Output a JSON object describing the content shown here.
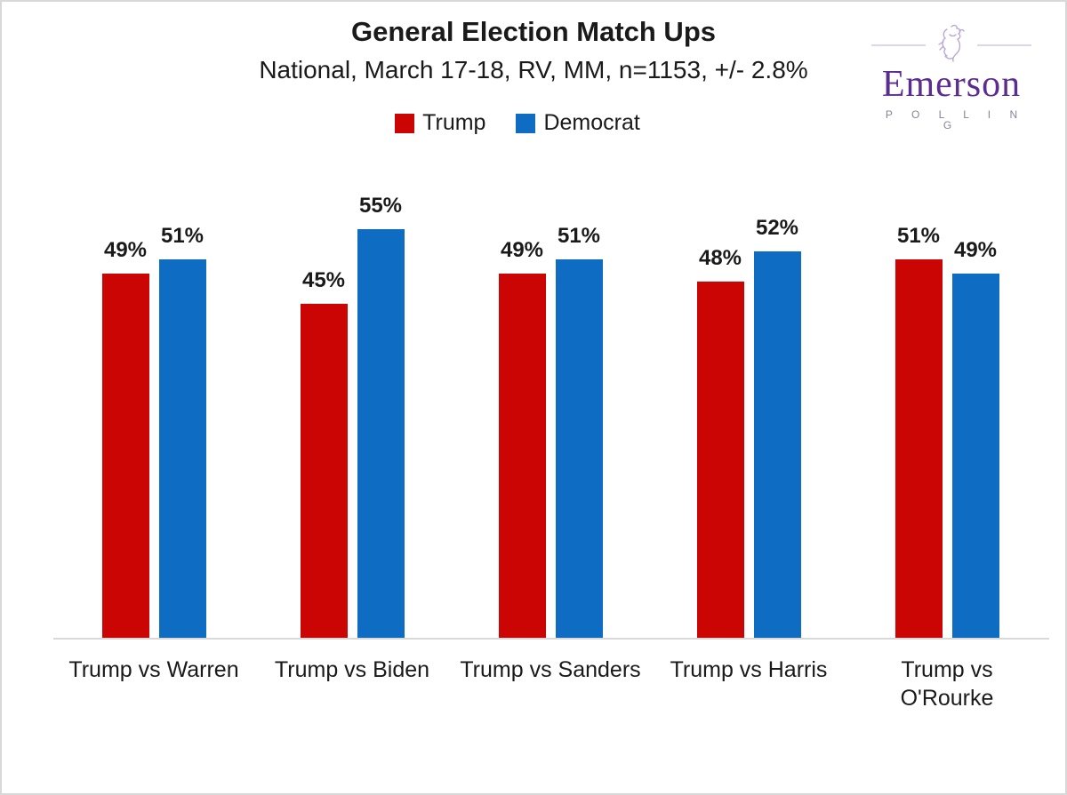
{
  "page": {
    "background_color": "#FFFFFF",
    "border_color": "#D8D8D8"
  },
  "header": {
    "title": "General Election Match Ups",
    "subtitle": "National, March 17-18, RV, MM, n=1153, +/- 2.8%"
  },
  "logo": {
    "brand": "Emerson",
    "tagline": "P O L L I N G",
    "brand_color": "#5C2D91",
    "tagline_color": "#8B819C",
    "crest_icon": "lion-rampant-icon"
  },
  "chart_data": {
    "type": "bar",
    "title": "General Election Match Ups",
    "subtitle": "National, March 17-18, RV, MM, n=1153, +/- 2.8%",
    "categories": [
      "Trump vs Warren",
      "Trump vs Biden",
      "Trump vs Sanders",
      "Trump vs Harris",
      "Trump vs O'Rourke"
    ],
    "category_label_lines": [
      [
        "Trump vs Warren"
      ],
      [
        "Trump vs Biden"
      ],
      [
        "Trump vs Sanders"
      ],
      [
        "Trump vs Harris"
      ],
      [
        "Trump vs",
        "O'Rourke"
      ]
    ],
    "series": [
      {
        "name": "Trump",
        "color": "#CB0404",
        "values": [
          49,
          45,
          49,
          48,
          51
        ]
      },
      {
        "name": "Democrat",
        "color": "#0E6DC2",
        "values": [
          51,
          55,
          51,
          52,
          49
        ]
      }
    ],
    "data_label_suffix": "%",
    "xlabel": "",
    "ylabel": "",
    "ylim": [
      0,
      64
    ],
    "grid": false,
    "legend_position": "top",
    "axis_line_color": "#D9D9D9",
    "data_labels_shown": true
  }
}
